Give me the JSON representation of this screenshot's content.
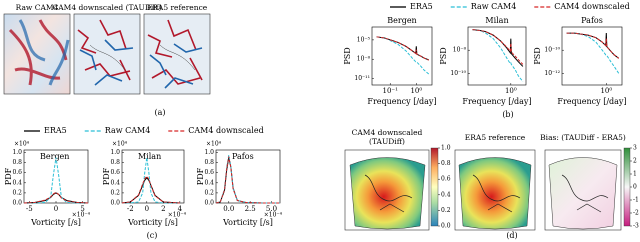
{
  "maps_a": {
    "titles": [
      "Raw CAM4",
      "CAM4 downscaled (TAUDiff)",
      "ERA5 reference"
    ],
    "label": "(a)"
  },
  "maps_d": {
    "titles": [
      [
        "CAM4 downscaled",
        "(TAUDiff)"
      ],
      [
        "ERA5 reference"
      ],
      [
        "Bias: (TAUDiff - ERA5)"
      ]
    ],
    "label": "(d)",
    "colorbars": [
      {
        "lim": [
          0,
          1
        ],
        "ticks": [
          {
            "value": 0,
            "label": "0.0"
          },
          {
            "value": 0.2,
            "label": "0.2"
          },
          {
            "value": 0.4,
            "label": "0.4"
          },
          {
            "value": 0.6,
            "label": "0.6"
          },
          {
            "value": 0.8,
            "label": "0.8"
          },
          {
            "value": 1,
            "label": "1.0"
          }
        ]
      },
      {
        "lim": [
          -3,
          3
        ],
        "ticks": [
          -3,
          -2,
          -1,
          0,
          1,
          2,
          3
        ]
      }
    ]
  },
  "chart_data": [
    {
      "type": "line",
      "log": true,
      "label": "(b)",
      "xlabel": "Frequency [/day]",
      "ylabel": "PSD",
      "series": [
        {
          "name": "ERA5",
          "color": "#000000",
          "style": "solid"
        },
        {
          "name": "Raw CAM4",
          "color": "#2bbfd6",
          "style": "dashed"
        },
        {
          "name": "CAM4 downscaled",
          "color": "#d62728",
          "style": "dashed"
        }
      ],
      "panels": [
        {
          "title": "Bergen",
          "xlim": [
            0.02,
            4
          ],
          "xticks": [
            {
              "value": 0.1,
              "label": "10⁻¹"
            },
            {
              "value": 1,
              "label": "10⁰"
            }
          ],
          "ylim": [
            1e-12,
            0.001
          ],
          "yticks": [
            {
              "value": 1e-05,
              "label": "10⁻⁵"
            },
            {
              "value": 1e-08,
              "label": "10⁻⁸"
            },
            {
              "value": 1e-11,
              "label": "10⁻¹¹"
            }
          ],
          "x": [
            0.03,
            0.06,
            0.1,
            0.2,
            0.4,
            0.7,
            0.95,
            1,
            1.05,
            1.5,
            2,
            3
          ],
          "lines": [
            [
              3e-05,
              2e-05,
              1e-05,
              4e-06,
              1e-06,
              2e-07,
              8e-08,
              1e-06,
              6e-08,
              3e-08,
              1.5e-08,
              8e-09
            ],
            [
              3e-05,
              2e-05,
              8e-06,
              2e-06,
              2e-07,
              1.5e-08,
              4e-09,
              4e-09,
              3.5e-09,
              8e-10,
              2e-10,
              5e-11
            ],
            [
              3e-05,
              2e-05,
              1e-05,
              4e-06,
              1e-06,
              2e-07,
              8e-08,
              3e-07,
              6e-08,
              3e-08,
              1.5e-08,
              7e-09
            ]
          ]
        },
        {
          "title": "Milan",
          "xlim": [
            0.02,
            4
          ],
          "xticks": [
            {
              "value": 1,
              "label": "10⁰"
            }
          ],
          "ylim": [
            1e-11,
            1e-06
          ],
          "yticks": [
            {
              "value": 1e-08,
              "label": "10⁻⁸"
            },
            {
              "value": 1e-10,
              "label": "10⁻¹⁰"
            }
          ],
          "x": [
            0.03,
            0.06,
            0.1,
            0.2,
            0.4,
            0.7,
            0.95,
            1,
            1.05,
            1.5,
            2,
            3
          ],
          "lines": [
            [
              6e-07,
              5e-07,
              4e-07,
              2e-07,
              6e-08,
              1.5e-08,
              6e-09,
              1e-07,
              5e-09,
              2e-09,
              1e-09,
              4e-10
            ],
            [
              6e-07,
              5e-07,
              3e-07,
              1e-07,
              1.5e-08,
              2e-09,
              7e-10,
              8e-10,
              6e-10,
              2e-10,
              6e-11,
              2e-11
            ],
            [
              6e-07,
              5e-07,
              4e-07,
              2e-07,
              6e-08,
              1.8e-08,
              8e-09,
              4e-08,
              7e-09,
              3e-09,
              1.5e-09,
              6e-10
            ]
          ]
        },
        {
          "title": "Pafos",
          "xlim": [
            0.02,
            4
          ],
          "xticks": [
            {
              "value": 1,
              "label": "10⁰"
            }
          ],
          "ylim": [
            1e-13,
            1e-08
          ],
          "yticks": [
            {
              "value": 1e-10,
              "label": "10⁻¹⁰"
            },
            {
              "value": 1e-12,
              "label": "10⁻¹²"
            }
          ],
          "x": [
            0.03,
            0.06,
            0.1,
            0.2,
            0.4,
            0.7,
            0.95,
            1,
            1.05,
            1.5,
            2,
            3
          ],
          "lines": [
            [
              3e-09,
              3e-09,
              2.5e-09,
              2e-09,
              1.2e-09,
              5e-10,
              2.5e-10,
              3e-09,
              2e-10,
              8e-11,
              4e-11,
              2e-11
            ],
            [
              3e-09,
              3e-09,
              2.5e-09,
              1.5e-09,
              5e-10,
              1e-10,
              4e-11,
              4e-11,
              3.5e-11,
              1e-11,
              4e-12,
              1e-12
            ],
            [
              3e-09,
              3e-09,
              2.5e-09,
              2e-09,
              1.2e-09,
              5e-10,
              2.5e-10,
              1e-09,
              2e-10,
              8e-11,
              4e-11,
              2e-11
            ]
          ]
        }
      ]
    },
    {
      "type": "line",
      "log": false,
      "label": "(c)",
      "xlabel": "Vorticity [/s]",
      "ylabel": "PDF",
      "yscale_label": "×10⁴",
      "xscale_label": "×10⁻⁴",
      "series": [
        {
          "name": "ERA5",
          "color": "#000000",
          "style": "solid"
        },
        {
          "name": "Raw CAM4",
          "color": "#2bbfd6",
          "style": "dashed"
        },
        {
          "name": "CAM4 downscaled",
          "color": "#d62728",
          "style": "dashed"
        }
      ],
      "panels": [
        {
          "title": "Bergen",
          "xlim": [
            -6,
            6
          ],
          "xticks": [
            -5,
            0,
            5
          ],
          "ylim": [
            0,
            1.05
          ],
          "yticks": [
            {
              "value": 0,
              "label": "0.0"
            },
            {
              "value": 0.2,
              "label": "0.2"
            },
            {
              "value": 0.4,
              "label": "0.4"
            },
            {
              "value": 0.6,
              "label": "0.6"
            },
            {
              "value": 0.8,
              "label": "0.8"
            },
            {
              "value": 1,
              "label": "1.0"
            }
          ],
          "x": [
            -6,
            -4,
            -2,
            -1,
            -0.5,
            0,
            0.5,
            1,
            2,
            4,
            6
          ],
          "lines": [
            [
              0,
              0.01,
              0.05,
              0.11,
              0.17,
              0.2,
              0.17,
              0.11,
              0.05,
              0.01,
              0
            ],
            [
              0,
              0,
              0.01,
              0.12,
              0.55,
              0.9,
              0.55,
              0.12,
              0.01,
              0,
              0
            ],
            [
              0,
              0.01,
              0.06,
              0.12,
              0.18,
              0.21,
              0.17,
              0.1,
              0.04,
              0.01,
              0
            ]
          ]
        },
        {
          "title": "Milan",
          "xlim": [
            -3,
            4.5
          ],
          "xticks": [
            -2,
            0,
            2,
            4
          ],
          "ylim": [
            0,
            1.05
          ],
          "yticks": [
            {
              "value": 0,
              "label": "0.0"
            },
            {
              "value": 0.2,
              "label": "0.2"
            },
            {
              "value": 0.4,
              "label": "0.4"
            },
            {
              "value": 0.6,
              "label": "0.6"
            },
            {
              "value": 0.8,
              "label": "0.8"
            },
            {
              "value": 1,
              "label": "1.0"
            }
          ],
          "x": [
            -3,
            -2,
            -1,
            -0.5,
            -0.25,
            0,
            0.25,
            0.5,
            1,
            2,
            4
          ],
          "lines": [
            [
              0,
              0.02,
              0.15,
              0.35,
              0.45,
              0.5,
              0.45,
              0.35,
              0.15,
              0.02,
              0
            ],
            [
              0,
              0,
              0.02,
              0.2,
              0.6,
              0.9,
              0.6,
              0.2,
              0.02,
              0,
              0
            ],
            [
              0,
              0.02,
              0.16,
              0.38,
              0.48,
              0.53,
              0.47,
              0.35,
              0.14,
              0.02,
              0
            ]
          ]
        },
        {
          "title": "Pafos",
          "xlim": [
            -1.5,
            6
          ],
          "xticks": [
            {
              "value": 0,
              "label": "0.0"
            },
            {
              "value": 2.5,
              "label": "2.5"
            },
            {
              "value": 5,
              "label": "5.0"
            }
          ],
          "ylim": [
            0,
            1.05
          ],
          "yticks": [
            {
              "value": 0,
              "label": "0.0"
            },
            {
              "value": 0.2,
              "label": "0.2"
            },
            {
              "value": 0.4,
              "label": "0.4"
            },
            {
              "value": 0.6,
              "label": "0.6"
            },
            {
              "value": 0.8,
              "label": "0.8"
            },
            {
              "value": 1,
              "label": "1.0"
            }
          ],
          "x": [
            -1.5,
            -1,
            -0.5,
            -0.25,
            0,
            0.25,
            0.5,
            1,
            2,
            4,
            6
          ],
          "lines": [
            [
              0,
              0.02,
              0.25,
              0.65,
              0.9,
              0.7,
              0.3,
              0.05,
              0.01,
              0,
              0
            ],
            [
              0,
              0.02,
              0.28,
              0.7,
              0.95,
              0.72,
              0.3,
              0.05,
              0.01,
              0,
              0
            ],
            [
              0,
              0.02,
              0.26,
              0.68,
              0.92,
              0.7,
              0.28,
              0.05,
              0.01,
              0,
              0
            ]
          ]
        }
      ]
    }
  ]
}
